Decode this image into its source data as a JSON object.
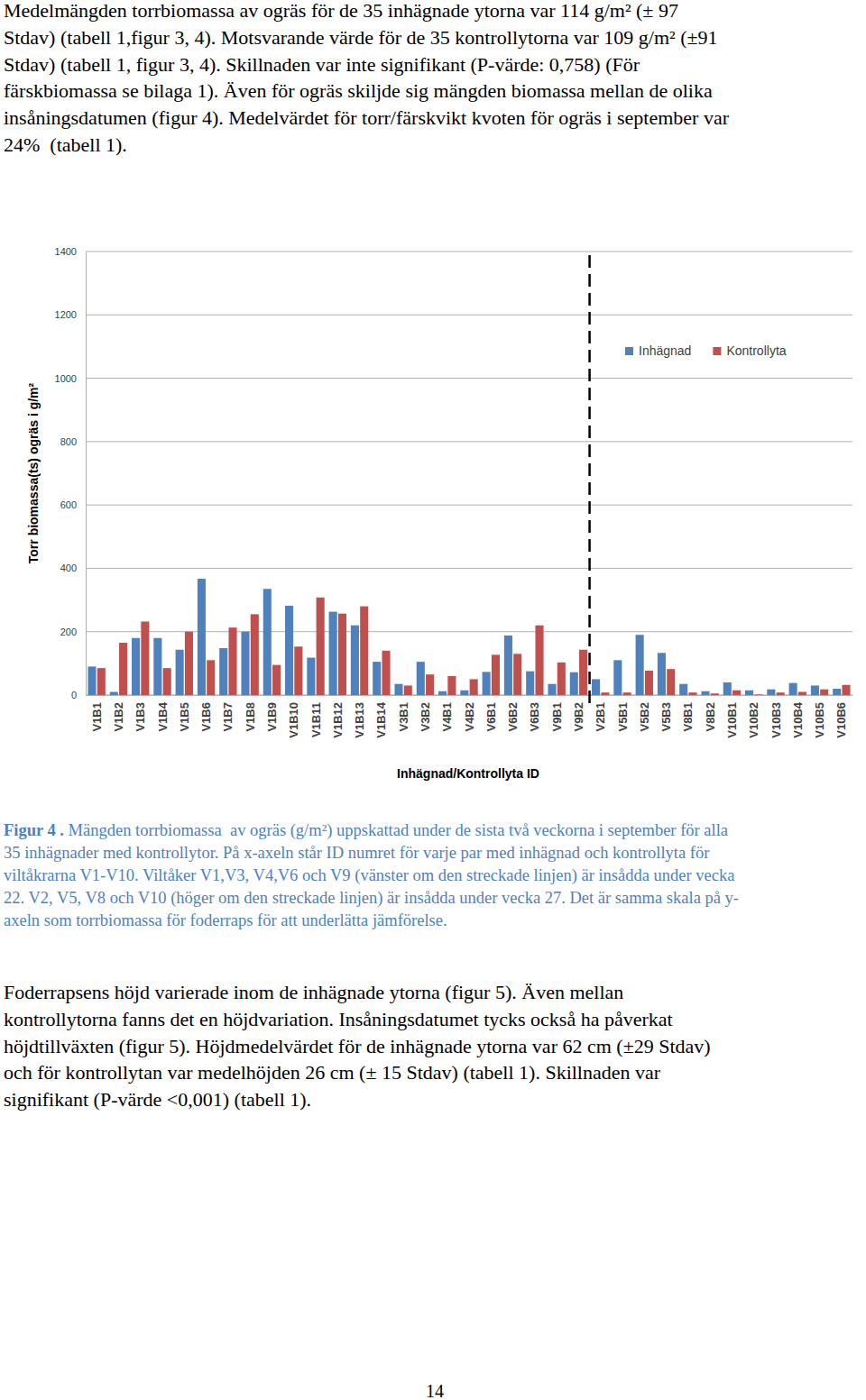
{
  "paragraphs": [
    {
      "lines": [
        "Medelmängden torrbiomassa av ogräs för de 35 inhägnade ytorna var 114 g/m² (± 97",
        "Stdav) (tabell 1,figur 3, 4). Motsvarande värde för de 35 kontrollytorna var 109 g/m² (±91",
        "Stdav) (tabell 1, figur 3, 4). Skillnaden var inte signifikant (P-värde: 0,758) (För",
        "färskbiomassa se bilaga 1). Även för ogräs skiljde sig mängden biomassa mellan de olika",
        "insåningsdatumen (figur 4). Medelvärdet för torr/färskvikt kvoten för ogräs i september var",
        "24%  (tabell 1)."
      ]
    },
    {
      "lines": [
        "Foderrapsens höjd varierade inom de inhägnade ytorna (figur 5). Även mellan",
        "kontrollytorna fanns det en höjdvariation. Insåningsdatumet tycks också ha påverkat",
        "höjdtillväxten (figur 5). Höjdmedelvärdet för de inhägnade ytorna var 62 cm (±29 Stdav)",
        "och för kontrollytan var medelhöjden 26 cm (± 15 Stdav) (tabell 1). Skillnaden var",
        "signifikant (P-värde <0,001) (tabell 1)."
      ]
    }
  ],
  "caption": {
    "label": "Figur 4 .",
    "lines": [
      " Mängden torrbiomassa  av ogräs (g/m²) uppskattad under de sista två veckorna i september för alla",
      "35 inhägnader med kontrollytor. På x-axeln står ID numret för varje par med inhägnad och kontrollyta för",
      "viltåkrarna V1-V10. Viltåker V1,V3, V4,V6 och V9 (vänster om den streckade linjen) är insådda under vecka",
      "22. V2, V5, V8 och V10 (höger om den streckade linjen) är insådda under vecka 27. Det är samma skala på y-",
      "axeln som torrbiomassa för foderraps för att underlätta jämförelse."
    ]
  },
  "page_number": 14,
  "chart_data": {
    "type": "bar",
    "x_label": "Inhägnad/Kontrollyta ID",
    "y_label": "Torr biomassa(ts) ogräs i g/m²",
    "categories": [
      "V1B1",
      "V1B2",
      "V1B3",
      "V1B4",
      "V1B5",
      "V1B6",
      "V1B7",
      "V1B8",
      "V1B9",
      "V1B10",
      "V1B11",
      "V1B12",
      "V1B13",
      "V1B14",
      "V3B1",
      "V3B2",
      "V4B1",
      "V4B2",
      "V6B1",
      "V6B2",
      "V6B3",
      "V9B1",
      "V9B2",
      "V2B1",
      "V5B1",
      "V5B2",
      "V5B3",
      "V8B1",
      "V8B2",
      "V10B1",
      "V10B2",
      "V10B3",
      "V10B4",
      "V10B5",
      "V10B6"
    ],
    "series": [
      {
        "name": "Inhägnad",
        "color": "#4f81bd",
        "values": [
          90,
          10,
          180,
          180,
          143,
          367,
          148,
          200,
          335,
          282,
          118,
          263,
          220,
          105,
          35,
          105,
          12,
          15,
          73,
          188,
          75,
          35,
          72,
          50,
          110,
          190,
          133,
          35,
          12,
          40,
          15,
          18,
          38,
          30,
          20
        ]
      },
      {
        "name": "Kontrollyta",
        "color": "#c0504d",
        "values": [
          85,
          165,
          232,
          85,
          200,
          110,
          213,
          255,
          95,
          153,
          308,
          257,
          280,
          140,
          30,
          65,
          60,
          50,
          127,
          130,
          220,
          103,
          143,
          8,
          8,
          77,
          82,
          8,
          5,
          15,
          2,
          8,
          10,
          18,
          32
        ]
      }
    ],
    "ylim": [
      0,
      1400
    ],
    "yticks": [
      0,
      200,
      400,
      600,
      800,
      1000,
      1200,
      1400
    ],
    "grid": true,
    "legend": "top-right"
  }
}
